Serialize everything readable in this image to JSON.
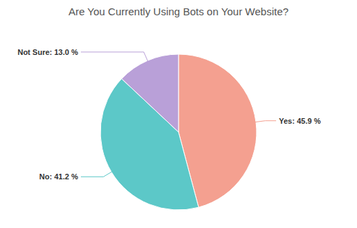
{
  "chart_data": {
    "type": "pie",
    "title": "Are You Currently Using Bots on Your Website?",
    "values": [
      45.9,
      41.2,
      13.0
    ],
    "value_labels": [
      "Yes: 45.9 %",
      "No: 41.2 %",
      "Not Sure: 13.0 %"
    ],
    "colors": [
      "#F4A090",
      "#5CC8C8",
      "#B9A0D8"
    ],
    "data_labels": true
  }
}
